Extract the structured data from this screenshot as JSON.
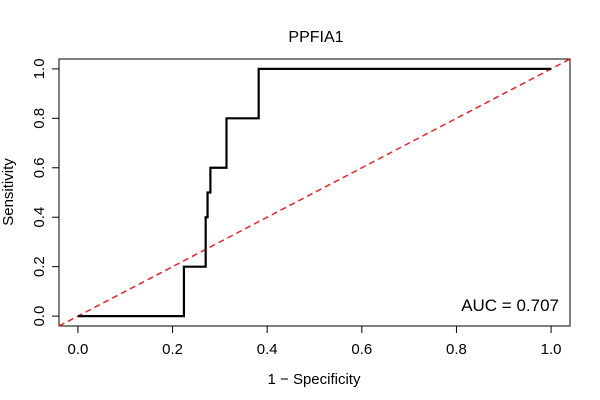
{
  "chart_data": {
    "type": "line",
    "title": "PPFIA1",
    "xlabel": "1 − Specificity",
    "ylabel": "Sensitivity",
    "xlim": [
      -0.04,
      1.04
    ],
    "ylim": [
      -0.04,
      1.04
    ],
    "x_ticks": [
      0.0,
      0.2,
      0.4,
      0.6,
      0.8,
      1.0
    ],
    "y_ticks": [
      0.0,
      0.2,
      0.4,
      0.6,
      0.8,
      1.0
    ],
    "x_tick_labels": [
      "0.0",
      "0.2",
      "0.4",
      "0.6",
      "0.8",
      "1.0"
    ],
    "y_tick_labels": [
      "0.0",
      "0.2",
      "0.4",
      "0.6",
      "0.8",
      "1.0"
    ],
    "grid": false,
    "annotation": "AUC = 0.707",
    "roc_curve": {
      "color": "#000000",
      "x": [
        0.0,
        0.224,
        0.224,
        0.27,
        0.27,
        0.274,
        0.274,
        0.28,
        0.28,
        0.314,
        0.314,
        0.382,
        0.382,
        1.0
      ],
      "y": [
        0.0,
        0.0,
        0.2,
        0.2,
        0.4,
        0.4,
        0.5,
        0.5,
        0.6,
        0.6,
        0.8,
        0.8,
        1.0,
        1.0
      ]
    },
    "reference_line": {
      "color": "#e3262b",
      "style": "dashed",
      "x": [
        -0.04,
        1.04
      ],
      "y": [
        -0.04,
        1.04
      ]
    }
  }
}
